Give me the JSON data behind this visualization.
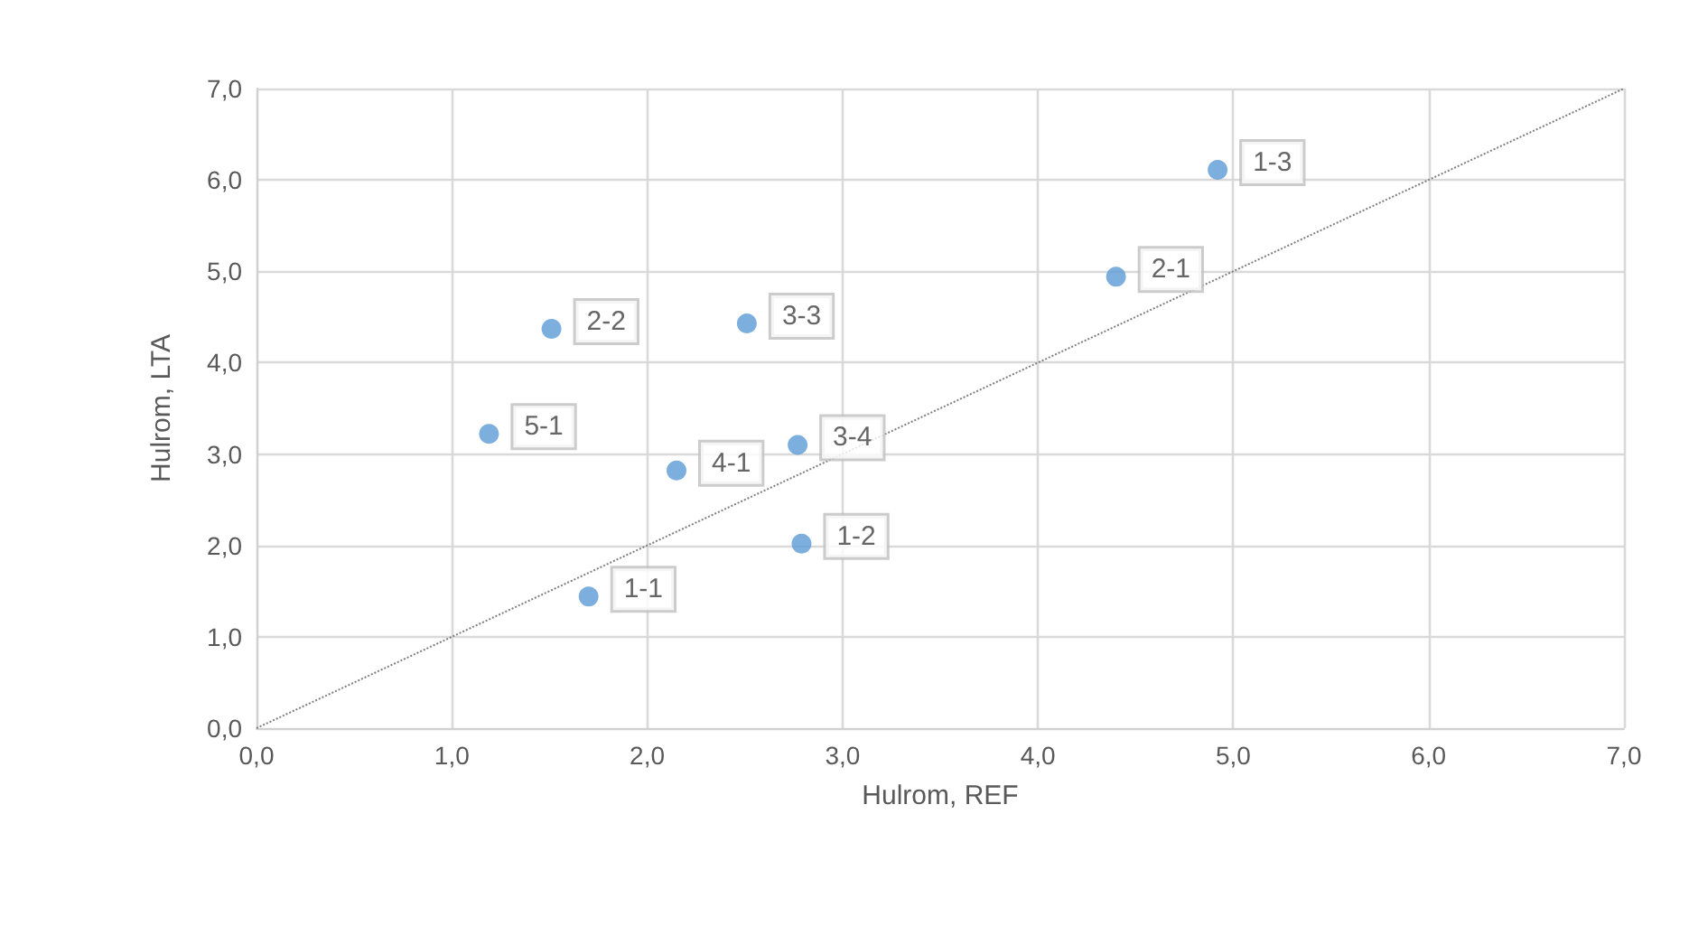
{
  "chart_data": {
    "type": "scatter",
    "xlabel": "Hulrom, REF",
    "ylabel": "Hulrom, LTA",
    "x": [
      1.7,
      2.79,
      4.92,
      4.4,
      1.51,
      2.51,
      2.77,
      2.15,
      1.19
    ],
    "series": [
      {
        "color": "#5b9bd5",
        "values": [
          1.44,
          2.02,
          6.11,
          4.94,
          4.37,
          4.43,
          3.1,
          2.82,
          3.22
        ],
        "value_labels": [
          "1-1",
          "1-2",
          "1-3",
          "2-1",
          "2-2",
          "3-3",
          "3-4",
          "4-1",
          "5-1"
        ],
        "marker": "circle"
      },
      {
        "type": "line",
        "x": [
          0,
          7
        ],
        "values": [
          0,
          7
        ],
        "color": "#7f7f7f",
        "line_style": "dotted",
        "marker": "none"
      }
    ],
    "xlim": [
      0,
      7
    ],
    "ylim": [
      0,
      7
    ],
    "xticks": [
      {
        "value": 0,
        "label": "0,0"
      },
      {
        "value": 1,
        "label": "1,0"
      },
      {
        "value": 2,
        "label": "2,0"
      },
      {
        "value": 3,
        "label": "3,0"
      },
      {
        "value": 4,
        "label": "4,0"
      },
      {
        "value": 5,
        "label": "5,0"
      },
      {
        "value": 6,
        "label": "6,0"
      },
      {
        "value": 7,
        "label": "7,0"
      }
    ],
    "yticks": [
      {
        "value": 0,
        "label": "0,0"
      },
      {
        "value": 1,
        "label": "1,0"
      },
      {
        "value": 2,
        "label": "2,0"
      },
      {
        "value": 3,
        "label": "3,0"
      },
      {
        "value": 4,
        "label": "4,0"
      },
      {
        "value": 5,
        "label": "5,0"
      },
      {
        "value": 6,
        "label": "6,0"
      },
      {
        "value": 7,
        "label": "7,0"
      }
    ],
    "grid": true
  }
}
